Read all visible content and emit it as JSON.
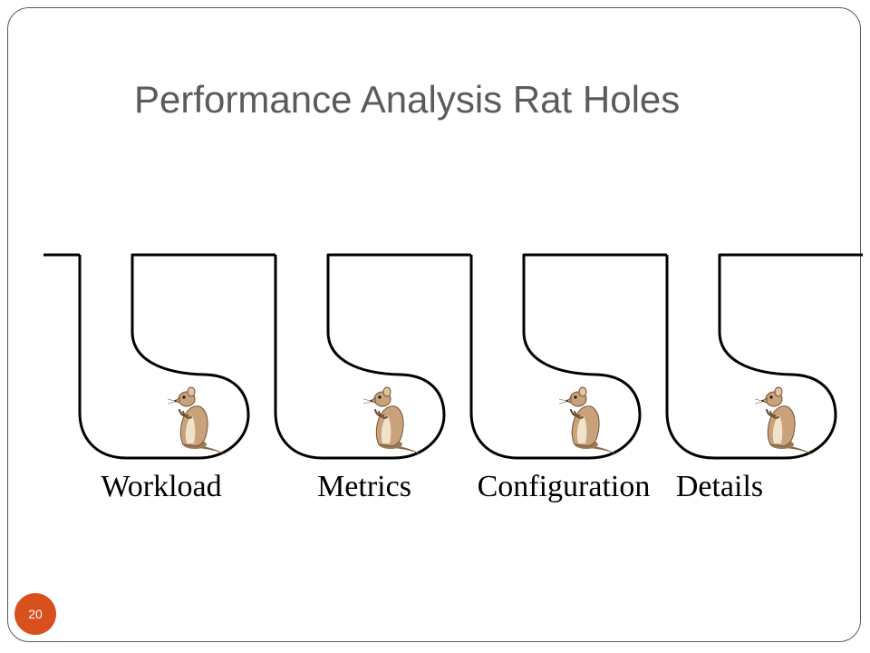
{
  "slide": {
    "title": "Performance Analysis Rat Holes",
    "page_number": "20"
  },
  "diagram": {
    "holes": [
      {
        "label": "Workload",
        "icon": "rat-icon"
      },
      {
        "label": "Metrics",
        "icon": "rat-icon"
      },
      {
        "label": "Configuration",
        "icon": "rat-icon"
      },
      {
        "label": "Details",
        "icon": "rat-icon"
      }
    ]
  },
  "colors": {
    "title": "#5b5b5b",
    "outline": "#000000",
    "badge": "#d9501f",
    "rat_fur": "#c9a27c"
  }
}
